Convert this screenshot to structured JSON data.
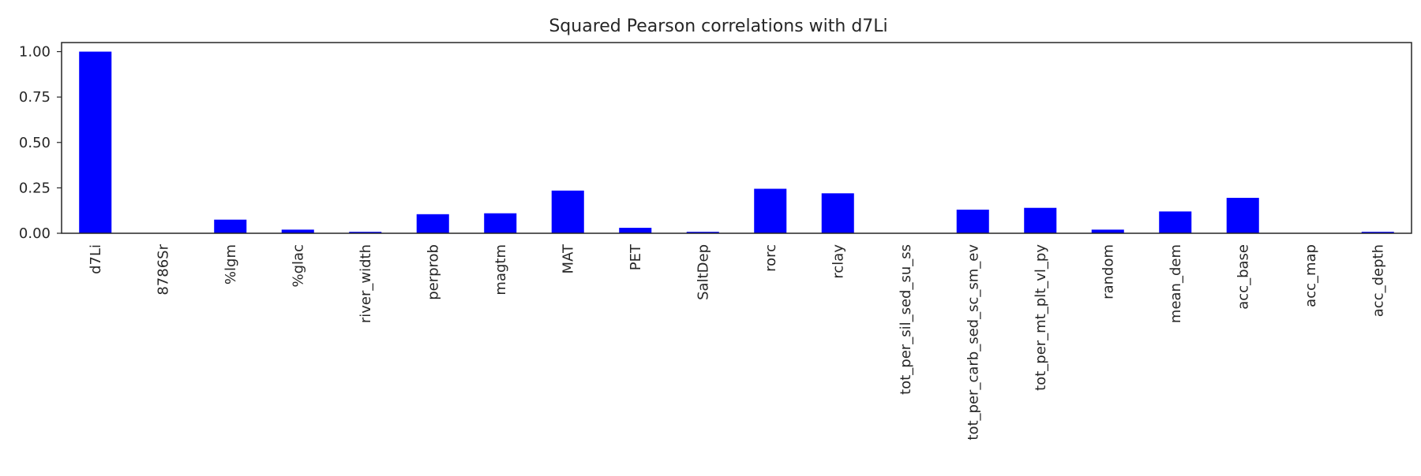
{
  "chart_data": {
    "type": "bar",
    "title": "Squared Pearson correlations with d7Li",
    "xlabel": "",
    "ylabel": "",
    "categories": [
      "d7Li",
      "8786Sr",
      "%lgm",
      "%glac",
      "river_width",
      "perprob",
      "magtm",
      "MAT",
      "PET",
      "SaltDep",
      "rorc",
      "rclay",
      "tot_per_sil_sed_su_ss",
      "tot_per_carb_sed_sc_sm_ev",
      "tot_per_mt_plt_vl_py",
      "random",
      "mean_dem",
      "acc_base",
      "acc_map",
      "acc_depth"
    ],
    "values": [
      1.0,
      0.0,
      0.075,
      0.02,
      0.008,
      0.105,
      0.11,
      0.235,
      0.03,
      0.008,
      0.245,
      0.22,
      0.0,
      0.13,
      0.14,
      0.02,
      0.12,
      0.195,
      0.0,
      0.008
    ],
    "ylim": [
      0.0,
      1.05
    ],
    "yticks": [
      "0.00",
      "0.25",
      "0.50",
      "0.75",
      "1.00"
    ],
    "grid": false,
    "bar_color": "#0000ff",
    "axis_color": "#262626"
  }
}
